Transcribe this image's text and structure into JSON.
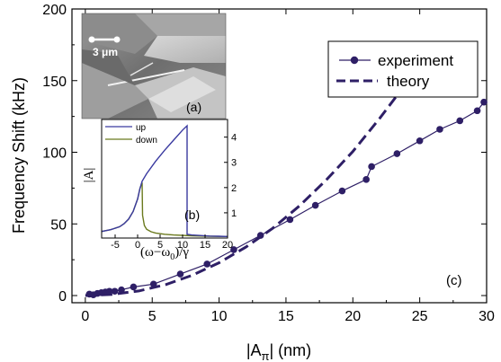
{
  "chart_data": [
    {
      "type": "scatter",
      "xlabel_base": "|A",
      "xlabel_sub": "π",
      "xlabel_unit": "| (nm)",
      "ylabel": "Frequency Shift (kHz)",
      "xlim": [
        -1,
        30
      ],
      "ylim": [
        -5,
        200
      ],
      "xticks": [
        0,
        5,
        10,
        15,
        20,
        25,
        30
      ],
      "yticks": [
        0,
        50,
        100,
        150,
        200
      ],
      "panel_label": "(c)",
      "legend_position": "top-right",
      "series": [
        {
          "name": "experiment",
          "style": "line-markers",
          "x": [
            0.3,
            0.6,
            0.9,
            1.2,
            1.5,
            1.8,
            2.2,
            2.7,
            3.6,
            5.1,
            7.1,
            9.1,
            11.1,
            13.1,
            15.3,
            17.2,
            19.2,
            21.0,
            21.4,
            23.3,
            25.0,
            26.5,
            28.0,
            29.3,
            29.8
          ],
          "y": [
            1,
            0.5,
            1.5,
            2,
            2.5,
            3,
            3,
            4,
            6,
            8,
            15,
            22,
            32,
            42,
            53,
            63,
            73,
            81,
            90,
            99,
            108,
            116,
            122,
            129,
            135
          ]
        },
        {
          "name": "theory",
          "style": "dashed",
          "x": [
            0,
            2,
            4,
            6,
            8,
            10,
            12,
            14,
            16,
            18,
            20,
            22,
            24,
            25.5
          ],
          "y": [
            0,
            0.8,
            3.2,
            7.6,
            14.2,
            22.9,
            33.8,
            46.9,
            62.5,
            80.5,
            100.6,
            123.6,
            148.2,
            166
          ]
        }
      ],
      "colors": {
        "series": "#2e1f66",
        "axis": "#000000"
      }
    },
    {
      "type": "line",
      "inset": true,
      "xlabel": "(ω−ω",
      "xlabel_sub": "0",
      "xlabel_tail": ")/γ",
      "ylabel": "|A|",
      "xlim": [
        -8,
        20
      ],
      "ylim": [
        0,
        4.7
      ],
      "xticks": [
        -5,
        0,
        5,
        10,
        15,
        20
      ],
      "yticks": [
        1,
        2,
        3,
        4
      ],
      "panel_label": "(b)",
      "series": [
        {
          "name": "up",
          "color": "#3a3aa0",
          "x": [
            -8,
            -6,
            -4,
            -3,
            -2,
            -1,
            0,
            0.5,
            1,
            2,
            4,
            6,
            8,
            10,
            11,
            11,
            12,
            14,
            16,
            18,
            20
          ],
          "y": [
            0.26,
            0.33,
            0.45,
            0.57,
            0.75,
            1.05,
            1.55,
            1.95,
            2.25,
            2.55,
            3.04,
            3.48,
            3.88,
            4.28,
            4.45,
            0.15,
            0.12,
            0.1,
            0.08,
            0.07,
            0.06
          ]
        },
        {
          "name": "down",
          "color": "#6b7a1e",
          "x": [
            -8,
            -6,
            -4,
            -3,
            -2,
            -1,
            0,
            0.5,
            1,
            1.1,
            1.5,
            2,
            3,
            4,
            6,
            8,
            12,
            16,
            20
          ],
          "y": [
            0.26,
            0.33,
            0.45,
            0.57,
            0.75,
            1.05,
            1.55,
            1.95,
            2.2,
            0.9,
            0.5,
            0.35,
            0.25,
            0.2,
            0.15,
            0.12,
            0.09,
            0.07,
            0.06
          ]
        }
      ]
    }
  ],
  "inset_a": {
    "scalebar_label": "3 μm",
    "panel_label": "(a)"
  }
}
